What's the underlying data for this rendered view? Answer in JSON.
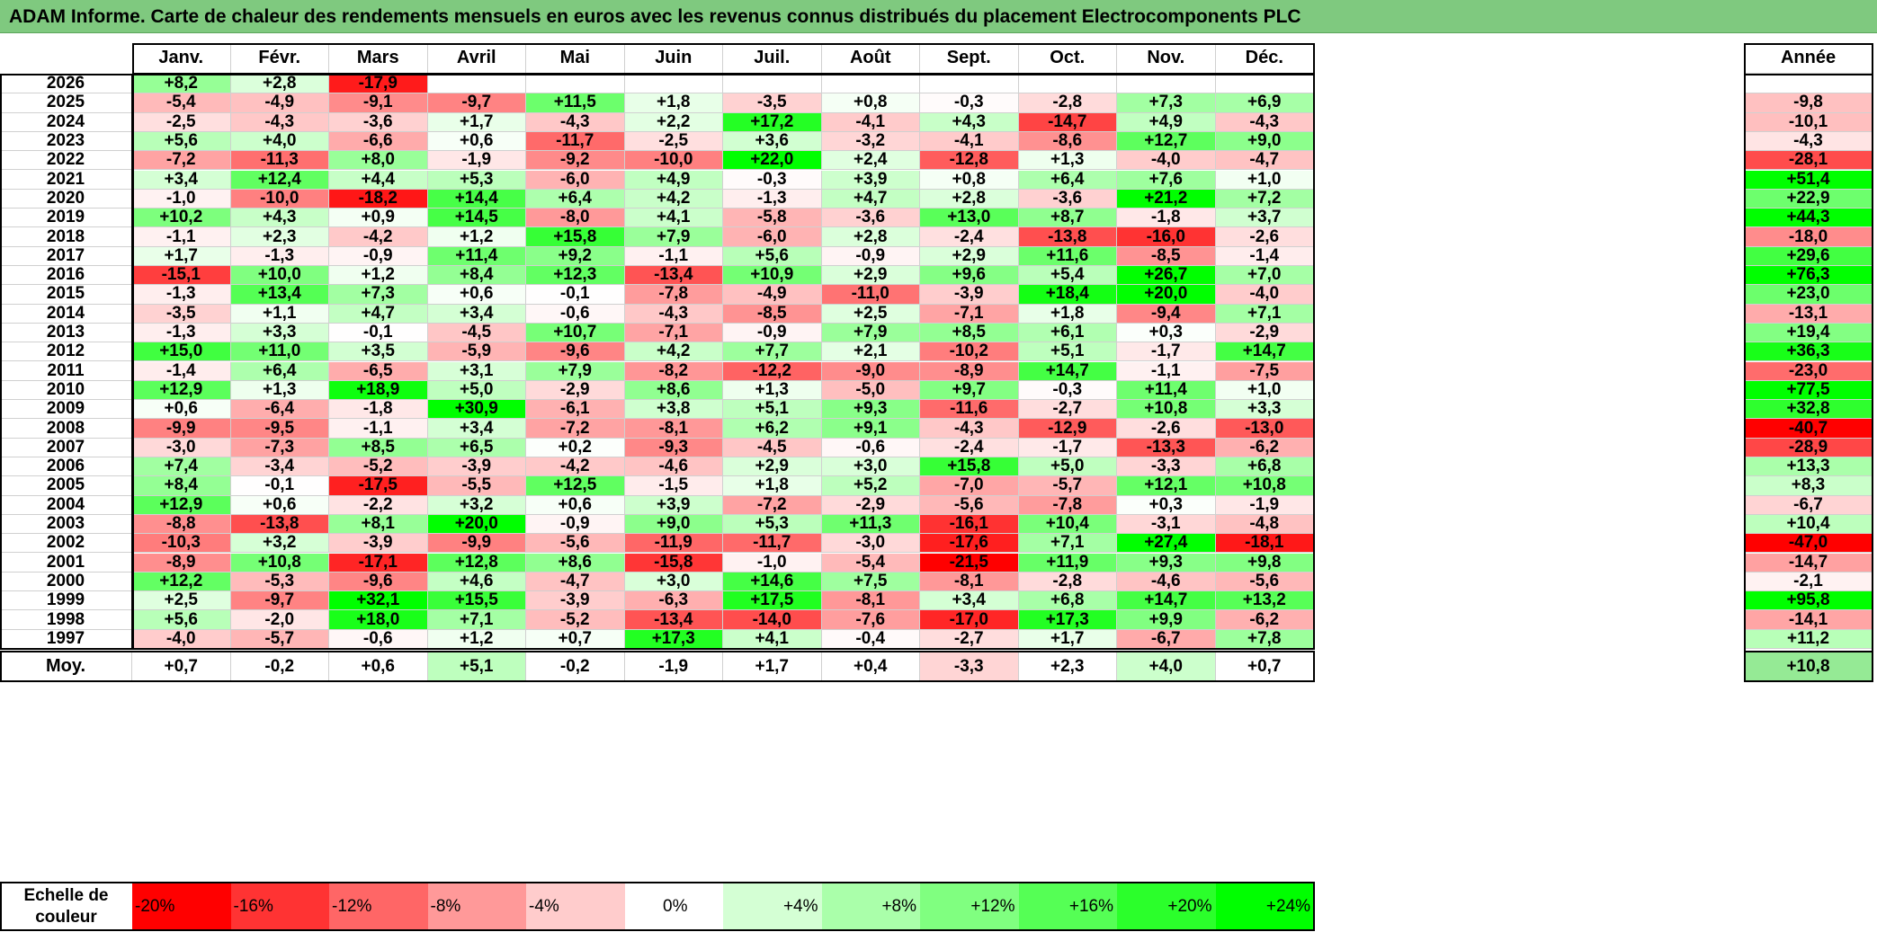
{
  "title": "ADAM Informe. Carte de chaleur des rendements mensuels en euros avec les revenus connus distribués du placement Electrocomponents PLC",
  "chart_data": {
    "type": "heatmap",
    "title": "ADAM Informe. Carte de chaleur des rendements mensuels en euros avec les revenus connus distribués du placement Electrocomponents PLC",
    "months": [
      "Janv.",
      "Févr.",
      "Mars",
      "Avril",
      "Mai",
      "Juin",
      "Juil.",
      "Août",
      "Sept.",
      "Oct.",
      "Nov.",
      "Déc."
    ],
    "annual_header": "Année",
    "rows": [
      {
        "year": "2026",
        "values": [
          "+8,2",
          "+2,8",
          "-17,9",
          "",
          "",
          "",
          "",
          "",
          "",
          "",
          "",
          ""
        ],
        "annual": ""
      },
      {
        "year": "2025",
        "values": [
          "-5,4",
          "-4,9",
          "-9,1",
          "-9,7",
          "+11,5",
          "+1,8",
          "-3,5",
          "+0,8",
          "-0,3",
          "-2,8",
          "+7,3",
          "+6,9"
        ],
        "annual": "-9,8"
      },
      {
        "year": "2024",
        "values": [
          "-2,5",
          "-4,3",
          "-3,6",
          "+1,7",
          "-4,3",
          "+2,2",
          "+17,2",
          "-4,1",
          "+4,3",
          "-14,7",
          "+4,9",
          "-4,3"
        ],
        "annual": "-10,1"
      },
      {
        "year": "2023",
        "values": [
          "+5,6",
          "+4,0",
          "-6,6",
          "+0,6",
          "-11,7",
          "-2,5",
          "+3,6",
          "-3,2",
          "-4,1",
          "-8,6",
          "+12,7",
          "+9,0"
        ],
        "annual": "-4,3"
      },
      {
        "year": "2022",
        "values": [
          "-7,2",
          "-11,3",
          "+8,0",
          "-1,9",
          "-9,2",
          "-10,0",
          "+22,0",
          "+2,4",
          "-12,8",
          "+1,3",
          "-4,0",
          "-4,7"
        ],
        "annual": "-28,1"
      },
      {
        "year": "2021",
        "values": [
          "+3,4",
          "+12,4",
          "+4,4",
          "+5,3",
          "-6,0",
          "+4,9",
          "-0,3",
          "+3,9",
          "+0,8",
          "+6,4",
          "+7,6",
          "+1,0"
        ],
        "annual": "+51,4"
      },
      {
        "year": "2020",
        "values": [
          "-1,0",
          "-10,0",
          "-18,2",
          "+14,4",
          "+6,4",
          "+4,2",
          "-1,3",
          "+4,7",
          "+2,8",
          "-3,6",
          "+21,2",
          "+7,2"
        ],
        "annual": "+22,9"
      },
      {
        "year": "2019",
        "values": [
          "+10,2",
          "+4,3",
          "+0,9",
          "+14,5",
          "-8,0",
          "+4,1",
          "-5,8",
          "-3,6",
          "+13,0",
          "+8,7",
          "-1,8",
          "+3,7"
        ],
        "annual": "+44,3"
      },
      {
        "year": "2018",
        "values": [
          "-1,1",
          "+2,3",
          "-4,2",
          "+1,2",
          "+15,8",
          "+7,9",
          "-6,0",
          "+2,8",
          "-2,4",
          "-13,8",
          "-16,0",
          "-2,6"
        ],
        "annual": "-18,0"
      },
      {
        "year": "2017",
        "values": [
          "+1,7",
          "-1,3",
          "-0,9",
          "+11,4",
          "+9,2",
          "-1,1",
          "+5,6",
          "-0,9",
          "+2,9",
          "+11,6",
          "-8,5",
          "-1,4"
        ],
        "annual": "+29,6"
      },
      {
        "year": "2016",
        "values": [
          "-15,1",
          "+10,0",
          "+1,2",
          "+8,4",
          "+12,3",
          "-13,4",
          "+10,9",
          "+2,9",
          "+9,6",
          "+5,4",
          "+26,7",
          "+7,0"
        ],
        "annual": "+76,3"
      },
      {
        "year": "2015",
        "values": [
          "-1,3",
          "+13,4",
          "+7,3",
          "+0,6",
          "-0,1",
          "-7,8",
          "-4,9",
          "-11,0",
          "-3,9",
          "+18,4",
          "+20,0",
          "-4,0"
        ],
        "annual": "+23,0"
      },
      {
        "year": "2014",
        "values": [
          "-3,5",
          "+1,1",
          "+4,7",
          "+3,4",
          "-0,6",
          "-4,3",
          "-8,5",
          "+2,5",
          "-7,1",
          "+1,8",
          "-9,4",
          "+7,1"
        ],
        "annual": "-13,1"
      },
      {
        "year": "2013",
        "values": [
          "-1,3",
          "+3,3",
          "-0,1",
          "-4,5",
          "+10,7",
          "-7,1",
          "-0,9",
          "+7,9",
          "+8,5",
          "+6,1",
          "+0,3",
          "-2,9"
        ],
        "annual": "+19,4"
      },
      {
        "year": "2012",
        "values": [
          "+15,0",
          "+11,0",
          "+3,5",
          "-5,9",
          "-9,6",
          "+4,2",
          "+7,7",
          "+2,1",
          "-10,2",
          "+5,1",
          "-1,7",
          "+14,7"
        ],
        "annual": "+36,3"
      },
      {
        "year": "2011",
        "values": [
          "-1,4",
          "+6,4",
          "-6,5",
          "+3,1",
          "+7,9",
          "-8,2",
          "-12,2",
          "-9,0",
          "-8,9",
          "+14,7",
          "-1,1",
          "-7,5"
        ],
        "annual": "-23,0"
      },
      {
        "year": "2010",
        "values": [
          "+12,9",
          "+1,3",
          "+18,9",
          "+5,0",
          "-2,9",
          "+8,6",
          "+1,3",
          "-5,0",
          "+9,7",
          "-0,3",
          "+11,4",
          "+1,0"
        ],
        "annual": "+77,5"
      },
      {
        "year": "2009",
        "values": [
          "+0,6",
          "-6,4",
          "-1,8",
          "+30,9",
          "-6,1",
          "+3,8",
          "+5,1",
          "+9,3",
          "-11,6",
          "-2,7",
          "+10,8",
          "+3,3"
        ],
        "annual": "+32,8"
      },
      {
        "year": "2008",
        "values": [
          "-9,9",
          "-9,5",
          "-1,1",
          "+3,4",
          "-7,2",
          "-8,1",
          "+6,2",
          "+9,1",
          "-4,3",
          "-12,9",
          "-2,6",
          "-13,0"
        ],
        "annual": "-40,7"
      },
      {
        "year": "2007",
        "values": [
          "-3,0",
          "-7,3",
          "+8,5",
          "+6,5",
          "+0,2",
          "-9,3",
          "-4,5",
          "-0,6",
          "-2,4",
          "-1,7",
          "-13,3",
          "-6,2"
        ],
        "annual": "-28,9"
      },
      {
        "year": "2006",
        "values": [
          "+7,4",
          "-3,4",
          "-5,2",
          "-3,9",
          "-4,2",
          "-4,6",
          "+2,9",
          "+3,0",
          "+15,8",
          "+5,0",
          "-3,3",
          "+6,8"
        ],
        "annual": "+13,3"
      },
      {
        "year": "2005",
        "values": [
          "+8,4",
          "-0,1",
          "-17,5",
          "-5,5",
          "+12,5",
          "-1,5",
          "+1,8",
          "+5,2",
          "-7,0",
          "-5,7",
          "+12,1",
          "+10,8"
        ],
        "annual": "+8,3"
      },
      {
        "year": "2004",
        "values": [
          "+12,9",
          "+0,6",
          "-2,2",
          "+3,2",
          "+0,6",
          "+3,9",
          "-7,2",
          "-2,9",
          "-5,6",
          "-7,8",
          "+0,3",
          "-1,9"
        ],
        "annual": "-6,7"
      },
      {
        "year": "2003",
        "values": [
          "-8,8",
          "-13,8",
          "+8,1",
          "+20,0",
          "-0,9",
          "+9,0",
          "+5,3",
          "+11,3",
          "-16,1",
          "+10,4",
          "-3,1",
          "-4,8"
        ],
        "annual": "+10,4"
      },
      {
        "year": "2002",
        "values": [
          "-10,3",
          "+3,2",
          "-3,9",
          "-9,9",
          "-5,6",
          "-11,9",
          "-11,7",
          "-3,0",
          "-17,6",
          "+7,1",
          "+27,4",
          "-18,1"
        ],
        "annual": "-47,0"
      },
      {
        "year": "2001",
        "values": [
          "-8,9",
          "+10,8",
          "-17,1",
          "+12,8",
          "+8,6",
          "-15,8",
          "-1,0",
          "-5,4",
          "-21,5",
          "+11,9",
          "+9,3",
          "+9,8"
        ],
        "annual": "-14,7"
      },
      {
        "year": "2000",
        "values": [
          "+12,2",
          "-5,3",
          "-9,6",
          "+4,6",
          "-4,7",
          "+3,0",
          "+14,6",
          "+7,5",
          "-8,1",
          "-2,8",
          "-4,6",
          "-5,6"
        ],
        "annual": "-2,1"
      },
      {
        "year": "1999",
        "values": [
          "+2,5",
          "-9,7",
          "+32,1",
          "+15,5",
          "-3,9",
          "-6,3",
          "+17,5",
          "-8,1",
          "+3,4",
          "+6,8",
          "+14,7",
          "+13,2"
        ],
        "annual": "+95,8"
      },
      {
        "year": "1998",
        "values": [
          "+5,6",
          "-2,0",
          "+18,0",
          "+7,1",
          "-5,2",
          "-13,4",
          "-14,0",
          "-7,6",
          "-17,0",
          "+17,3",
          "+9,9",
          "-6,2"
        ],
        "annual": "-14,1"
      },
      {
        "year": "1997",
        "values": [
          "-4,0",
          "-5,7",
          "-0,6",
          "+1,2",
          "+0,7",
          "+17,3",
          "+4,1",
          "-0,4",
          "-2,7",
          "+1,7",
          "-6,7",
          "+7,8"
        ],
        "annual": "+11,2"
      }
    ],
    "average": {
      "label": "Moy.",
      "values": [
        "+0,7",
        "-0,2",
        "+0,6",
        "+5,1",
        "-0,2",
        "-1,9",
        "+1,7",
        "+0,4",
        "-3,3",
        "+2,3",
        "+4,0",
        "+0,7"
      ],
      "annual": "+10,8"
    },
    "color_scale": {
      "label_line1": "Echelle de",
      "label_line2": "couleur",
      "steps": [
        {
          "label": "-20%",
          "color": "#ff0000"
        },
        {
          "label": "-16%",
          "color": "#ff3333"
        },
        {
          "label": "-12%",
          "color": "#ff6666"
        },
        {
          "label": "-8%",
          "color": "#ff9999"
        },
        {
          "label": "-4%",
          "color": "#ffcccc"
        },
        {
          "label": "0%",
          "color": "#ffffff"
        },
        {
          "label": "+4%",
          "color": "#d4ffd4"
        },
        {
          "label": "+8%",
          "color": "#aaffaa"
        },
        {
          "label": "+12%",
          "color": "#80ff80"
        },
        {
          "label": "+16%",
          "color": "#55ff55"
        },
        {
          "label": "+20%",
          "color": "#2bff2b"
        },
        {
          "label": "+24%",
          "color": "#00ff00"
        }
      ]
    }
  },
  "colors": {
    "title_bar": "#7fc97f",
    "negative_max": "#ff0000",
    "positive_max": "#00ff00",
    "neutral": "#ffffff"
  }
}
